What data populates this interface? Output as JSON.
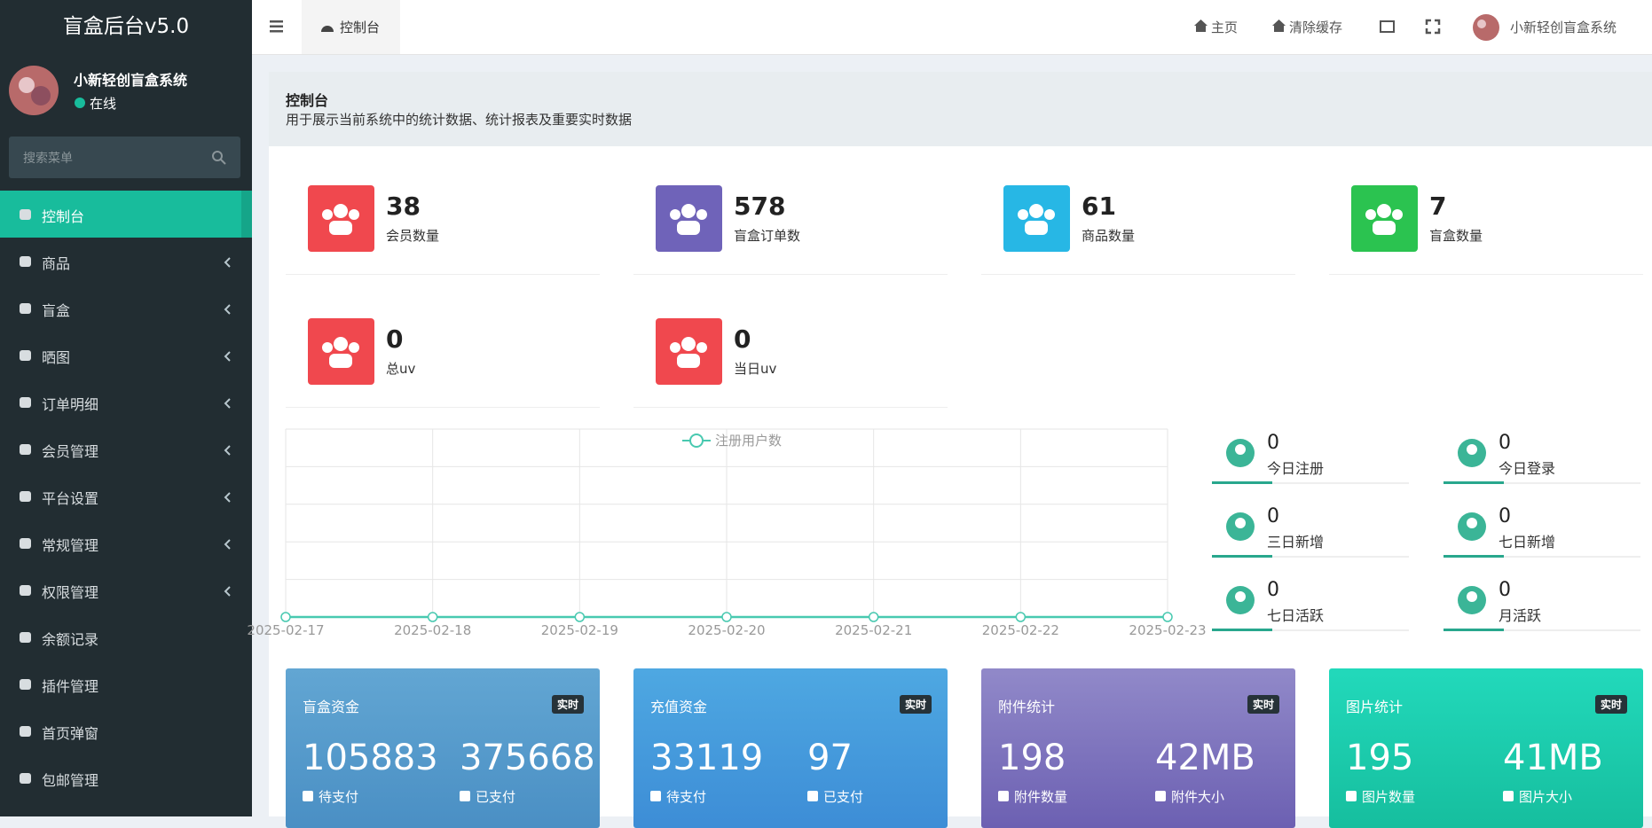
{
  "sidebar": {
    "logo": "盲盒后台v5.0",
    "user": {
      "name": "小新轻创盲盒系统",
      "status": "在线"
    },
    "search_placeholder": "搜索菜单",
    "menu": [
      {
        "label": "控制台",
        "active": true
      },
      {
        "label": "商品",
        "arrow": true
      },
      {
        "label": "盲盒",
        "arrow": true
      },
      {
        "label": "晒图",
        "arrow": true
      },
      {
        "label": "订单明细",
        "arrow": true
      },
      {
        "label": "会员管理",
        "arrow": true
      },
      {
        "label": "平台设置",
        "arrow": true
      },
      {
        "label": "常规管理",
        "arrow": true
      },
      {
        "label": "权限管理",
        "arrow": true
      },
      {
        "label": "余额记录"
      },
      {
        "label": "插件管理"
      },
      {
        "label": "首页弹窗"
      },
      {
        "label": "包邮管理"
      }
    ]
  },
  "topbar": {
    "tab": "控制台",
    "links": [
      "主页",
      "清除缓存"
    ],
    "user_name": "小新轻创盲盒系统"
  },
  "panel": {
    "title": "控制台",
    "description": "用于展示当前系统中的统计数据、统计报表及重要实时数据"
  },
  "stats": [
    {
      "value": 38,
      "label": "会员数量",
      "color": "#f0484e"
    },
    {
      "value": 578,
      "label": "盲盒订单数",
      "color": "#6f63b9"
    },
    {
      "value": 61,
      "label": "商品数量",
      "color": "#27b7e5"
    },
    {
      "value": 7,
      "label": "盲盒数量",
      "color": "#2bc350"
    },
    {
      "value": 0,
      "label": "总uv",
      "color": "#f0484e"
    },
    {
      "value": 0,
      "label": "当日uv",
      "color": "#f0484e"
    }
  ],
  "chart": {
    "type": "line",
    "legend": "注册用户数",
    "color": "#48c9b0",
    "x": [
      "2025-02-17",
      "2025-02-18",
      "2025-02-19",
      "2025-02-20",
      "2025-02-21",
      "2025-02-22",
      "2025-02-23"
    ],
    "values": [
      0,
      0,
      0,
      0,
      0,
      0,
      0
    ],
    "ylim": [
      0,
      1
    ]
  },
  "mini_stats": [
    {
      "value": 0,
      "label": "今日注册"
    },
    {
      "value": 0,
      "label": "今日登录"
    },
    {
      "value": 0,
      "label": "三日新增"
    },
    {
      "value": 0,
      "label": "七日新增"
    },
    {
      "value": 0,
      "label": "七日活跃"
    },
    {
      "value": 0,
      "label": "月活跃"
    }
  ],
  "cards": [
    {
      "title": "盲盒资金",
      "badge": "实时",
      "items": [
        {
          "value": 105883,
          "label": "待支付"
        },
        {
          "value": 375668,
          "label": "已支付"
        }
      ]
    },
    {
      "title": "充值资金",
      "badge": "实时",
      "items": [
        {
          "value": 33119,
          "label": "待支付"
        },
        {
          "value": 97,
          "label": "已支付"
        }
      ]
    },
    {
      "title": "附件统计",
      "badge": "实时",
      "items": [
        {
          "value": 198,
          "label": "附件数量"
        },
        {
          "value": "42MB",
          "label": "附件大小"
        }
      ]
    },
    {
      "title": "图片统计",
      "badge": "实时",
      "items": [
        {
          "value": 195,
          "label": "图片数量"
        },
        {
          "value": "41MB",
          "label": "图片大小"
        }
      ]
    }
  ]
}
